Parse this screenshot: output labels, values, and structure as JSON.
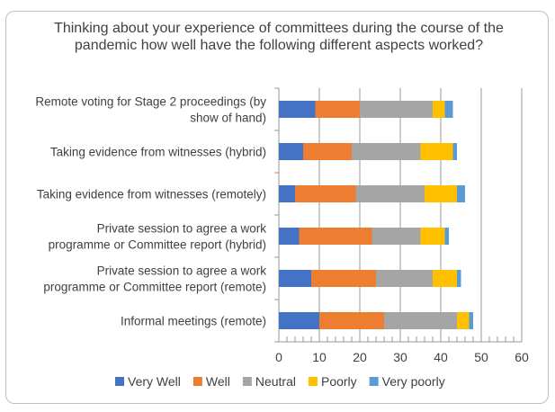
{
  "chart_data": {
    "type": "bar",
    "orientation": "horizontal",
    "stacked": true,
    "title": "Thinking about your experience of committees during the course of the pandemic how well have the following different aspects worked?",
    "categories": [
      [
        "Remote voting for Stage 2 proceedings (by",
        "show of hand)"
      ],
      [
        "Taking evidence from witnesses (hybrid)"
      ],
      [
        "Taking evidence from witnesses (remotely)"
      ],
      [
        "Private session to agree a work",
        "programme or Committee report (hybrid)"
      ],
      [
        "Private session to agree a work",
        "programme or Committee report (remote)"
      ],
      [
        "Informal meetings (remote)"
      ]
    ],
    "series": [
      {
        "name": "Very Well",
        "color": "#4472c4",
        "values": [
          9,
          6,
          4,
          5,
          8,
          10
        ]
      },
      {
        "name": "Well",
        "color": "#ed7d31",
        "values": [
          11,
          12,
          15,
          18,
          16,
          16
        ]
      },
      {
        "name": "Neutral",
        "color": "#a5a5a5",
        "values": [
          18,
          17,
          17,
          12,
          14,
          18
        ]
      },
      {
        "name": "Poorly",
        "color": "#ffc000",
        "values": [
          3,
          8,
          8,
          6,
          6,
          3
        ]
      },
      {
        "name": "Very poorly",
        "color": "#5b9bd5",
        "values": [
          2,
          1,
          2,
          1,
          1,
          1
        ]
      }
    ],
    "xlim": [
      0,
      60
    ],
    "xticks": [
      "0",
      "10",
      "20",
      "30",
      "40",
      "50",
      "60"
    ],
    "grid": true,
    "legend": "bottom"
  }
}
